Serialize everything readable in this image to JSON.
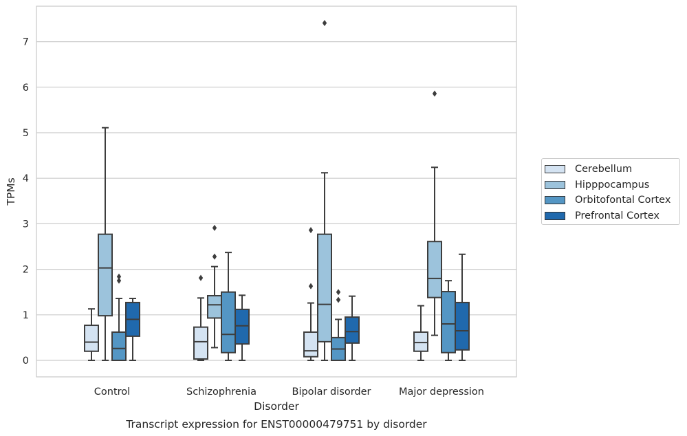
{
  "chart_data": {
    "type": "box",
    "title": "Transcript expression for ENST00000479751 by disorder",
    "xlabel": "Disorder",
    "ylabel": "TPMs",
    "ylim": [
      -0.35,
      7.8
    ],
    "yticks": [
      "0",
      "1",
      "2",
      "3",
      "4",
      "5",
      "6",
      "7"
    ],
    "categories": [
      "Control",
      "Schizophrenia",
      "Bipolar disorder",
      "Major depression"
    ],
    "grid": "horizontal",
    "legend_position": "right",
    "series": [
      {
        "name": "Cerebellum",
        "color": "#d4e3f2",
        "boxes": [
          {
            "whislo": 0.0,
            "q1": 0.2,
            "med": 0.4,
            "q3": 0.77,
            "whishi": 1.13,
            "fliers": []
          },
          {
            "whislo": 0.0,
            "q1": 0.03,
            "med": 0.41,
            "q3": 0.73,
            "whishi": 1.37,
            "fliers": [
              1.81
            ]
          },
          {
            "whislo": 0.0,
            "q1": 0.08,
            "med": 0.21,
            "q3": 0.62,
            "whishi": 1.26,
            "fliers": [
              1.63,
              2.86
            ]
          },
          {
            "whislo": 0.0,
            "q1": 0.2,
            "med": 0.39,
            "q3": 0.62,
            "whishi": 1.2,
            "fliers": []
          }
        ]
      },
      {
        "name": "Hipppocampus",
        "color": "#9cc3dc",
        "boxes": [
          {
            "whislo": 0.0,
            "q1": 0.98,
            "med": 2.03,
            "q3": 2.77,
            "whishi": 5.11,
            "fliers": []
          },
          {
            "whislo": 0.28,
            "q1": 0.93,
            "med": 1.22,
            "q3": 1.42,
            "whishi": 2.06,
            "fliers": [
              2.28,
              2.91
            ]
          },
          {
            "whislo": 0.0,
            "q1": 0.41,
            "med": 1.23,
            "q3": 2.77,
            "whishi": 4.12,
            "fliers": [
              7.41
            ]
          },
          {
            "whislo": 0.55,
            "q1": 1.38,
            "med": 1.8,
            "q3": 2.61,
            "whishi": 4.24,
            "fliers": [
              5.86
            ]
          }
        ]
      },
      {
        "name": "Orbitofontal Cortex",
        "color": "#5496c4",
        "boxes": [
          {
            "whislo": 0.0,
            "q1": 0.0,
            "med": 0.26,
            "q3": 0.62,
            "whishi": 1.36,
            "fliers": [
              1.75,
              1.84
            ]
          },
          {
            "whislo": 0.0,
            "q1": 0.17,
            "med": 0.57,
            "q3": 1.5,
            "whishi": 2.37,
            "fliers": []
          },
          {
            "whislo": 0.0,
            "q1": 0.0,
            "med": 0.25,
            "q3": 0.5,
            "whishi": 0.9,
            "fliers": [
              1.33,
              1.5
            ]
          },
          {
            "whislo": 0.0,
            "q1": 0.17,
            "med": 0.8,
            "q3": 1.51,
            "whishi": 1.75,
            "fliers": []
          }
        ]
      },
      {
        "name": "Prefrontal Cortex",
        "color": "#2069ad",
        "boxes": [
          {
            "whislo": 0.0,
            "q1": 0.53,
            "med": 0.9,
            "q3": 1.27,
            "whishi": 1.36,
            "fliers": []
          },
          {
            "whislo": 0.0,
            "q1": 0.36,
            "med": 0.76,
            "q3": 1.12,
            "whishi": 1.43,
            "fliers": []
          },
          {
            "whislo": 0.0,
            "q1": 0.38,
            "med": 0.63,
            "q3": 0.95,
            "whishi": 1.41,
            "fliers": []
          },
          {
            "whislo": 0.0,
            "q1": 0.23,
            "med": 0.65,
            "q3": 1.27,
            "whishi": 2.33,
            "fliers": []
          }
        ]
      }
    ]
  }
}
